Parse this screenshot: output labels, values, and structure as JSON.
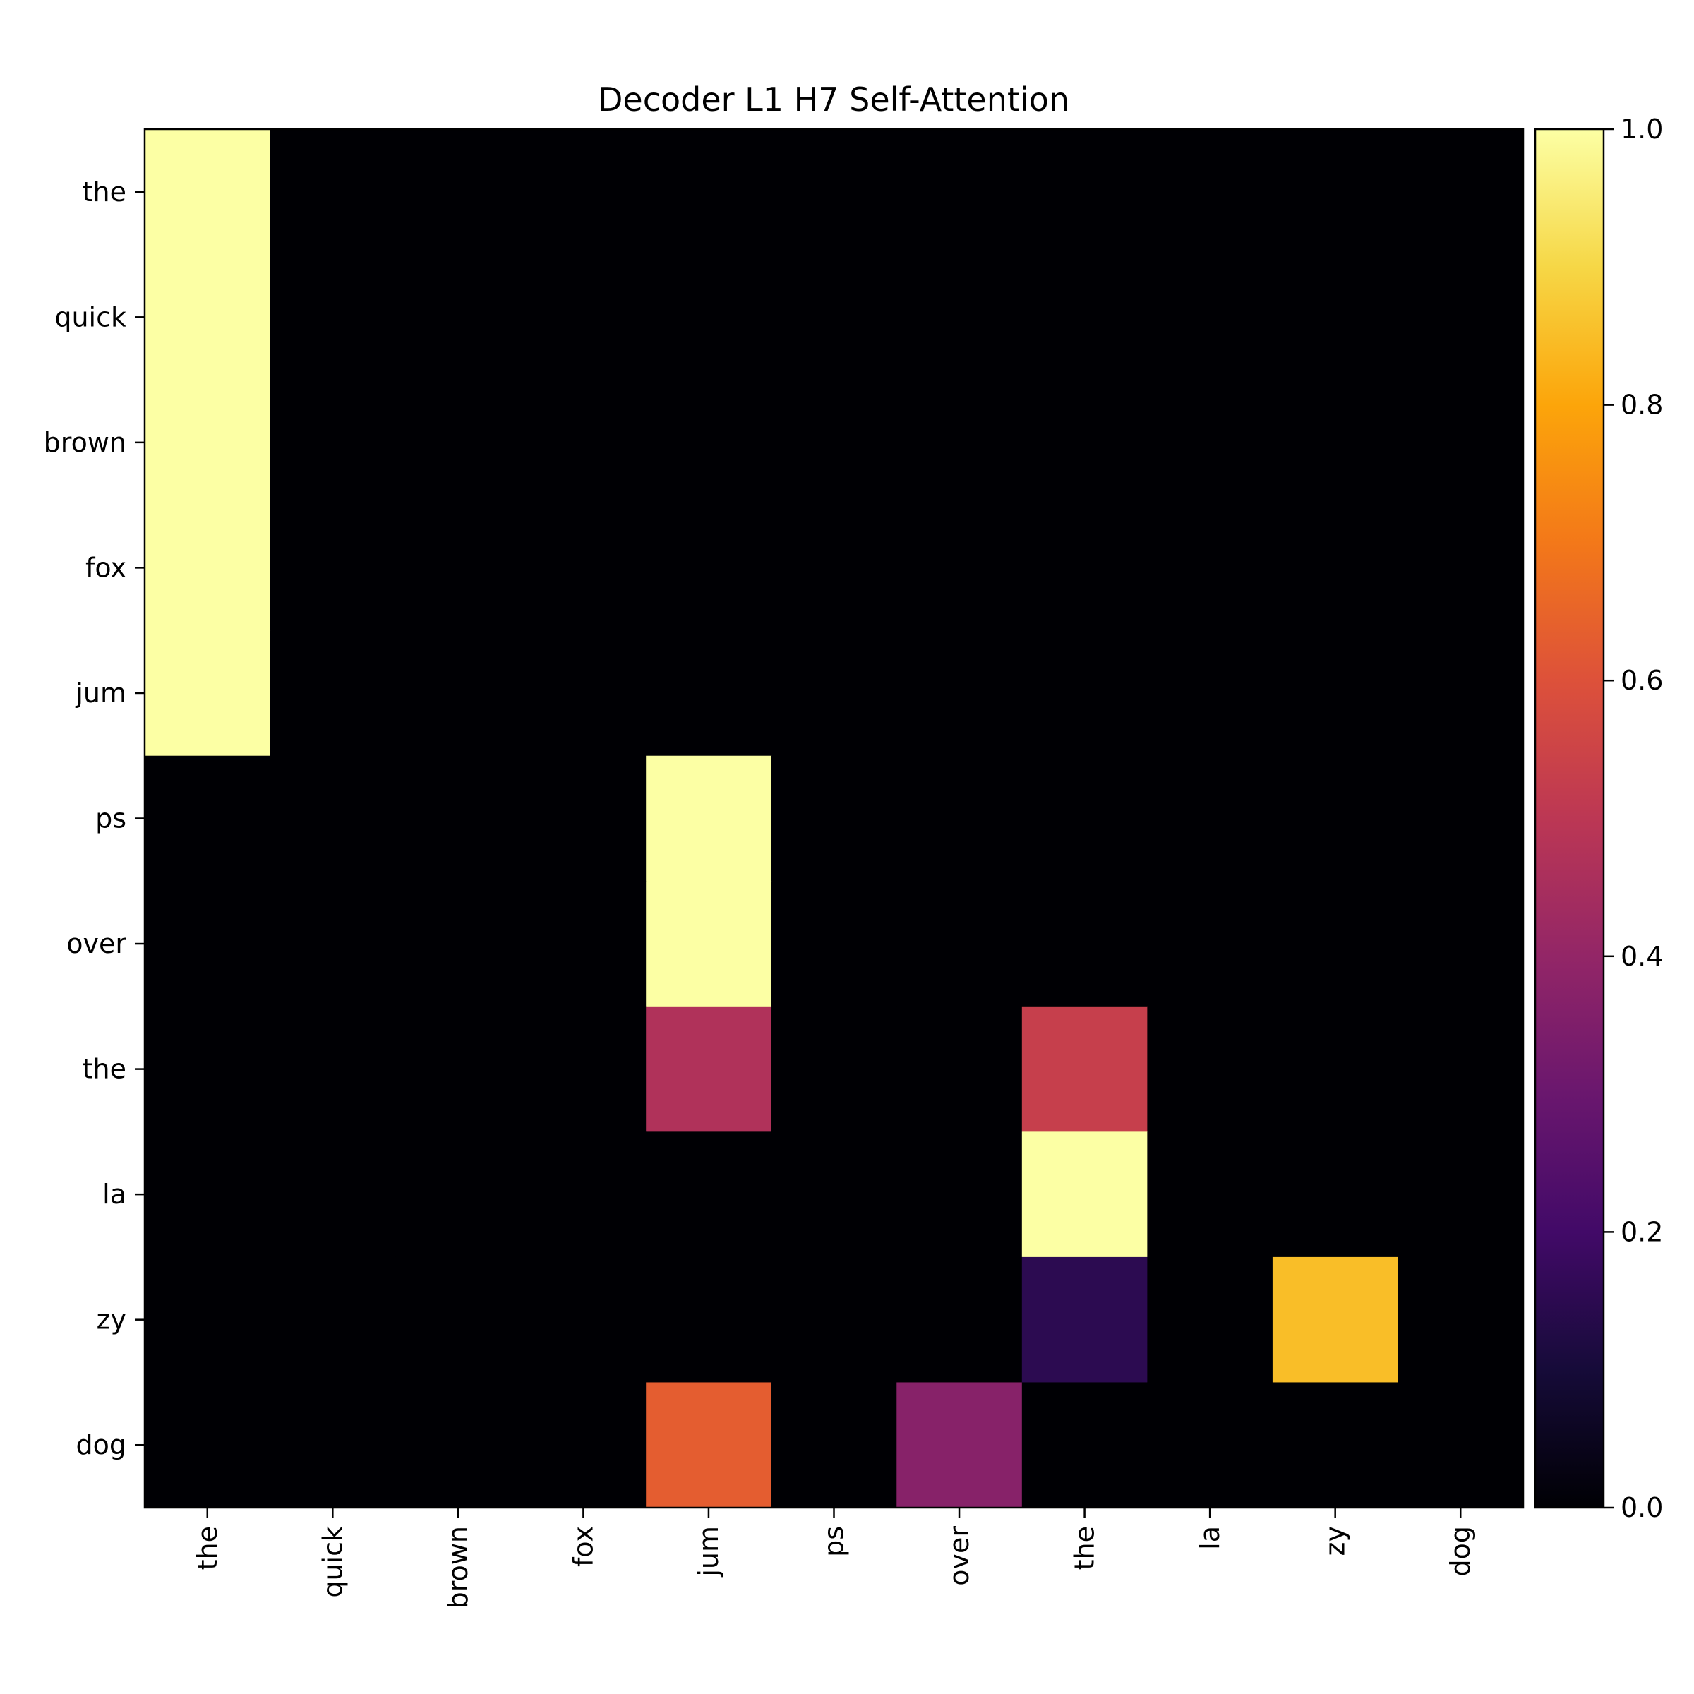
{
  "chart_data": {
    "type": "heatmap",
    "title": "Decoder L1 H7 Self-Attention",
    "x_tokens": [
      "the",
      "quick",
      "brown",
      "fox",
      "jum",
      "ps",
      "over",
      "the",
      "la",
      "zy",
      "dog"
    ],
    "y_tokens": [
      "the",
      "quick",
      "brown",
      "fox",
      "jum",
      "ps",
      "over",
      "the",
      "la",
      "zy",
      "dog"
    ],
    "values": [
      [
        1.0,
        0,
        0,
        0,
        0,
        0,
        0,
        0,
        0,
        0,
        0
      ],
      [
        1.0,
        0,
        0,
        0,
        0,
        0,
        0,
        0,
        0,
        0,
        0
      ],
      [
        1.0,
        0,
        0,
        0,
        0,
        0,
        0,
        0,
        0,
        0,
        0
      ],
      [
        1.0,
        0,
        0,
        0,
        0,
        0,
        0,
        0,
        0,
        0,
        0
      ],
      [
        1.0,
        0,
        0,
        0,
        0,
        0,
        0,
        0,
        0,
        0,
        0
      ],
      [
        0,
        0,
        0,
        0,
        1.0,
        0,
        0,
        0,
        0,
        0,
        0
      ],
      [
        0,
        0,
        0,
        0,
        1.0,
        0,
        0,
        0,
        0,
        0,
        0
      ],
      [
        0,
        0,
        0,
        0,
        0.47,
        0,
        0,
        0.53,
        0,
        0,
        0
      ],
      [
        0,
        0,
        0,
        0,
        0,
        0,
        0,
        1.0,
        0,
        0,
        0
      ],
      [
        0,
        0,
        0,
        0,
        0,
        0,
        0,
        0.15,
        0,
        0.85,
        0
      ],
      [
        0,
        0,
        0,
        0,
        0.63,
        0,
        0.37,
        0,
        0,
        0,
        0
      ]
    ],
    "colormap": "inferno",
    "vmin": 0.0,
    "vmax": 1.0,
    "colorbar_ticks": [
      "0.0",
      "0.2",
      "0.4",
      "0.6",
      "0.8",
      "1.0"
    ],
    "colorbar_tick_values": [
      0.0,
      0.2,
      0.4,
      0.6,
      0.8,
      1.0
    ],
    "xtick_rotation": "vertical",
    "grid": false
  }
}
